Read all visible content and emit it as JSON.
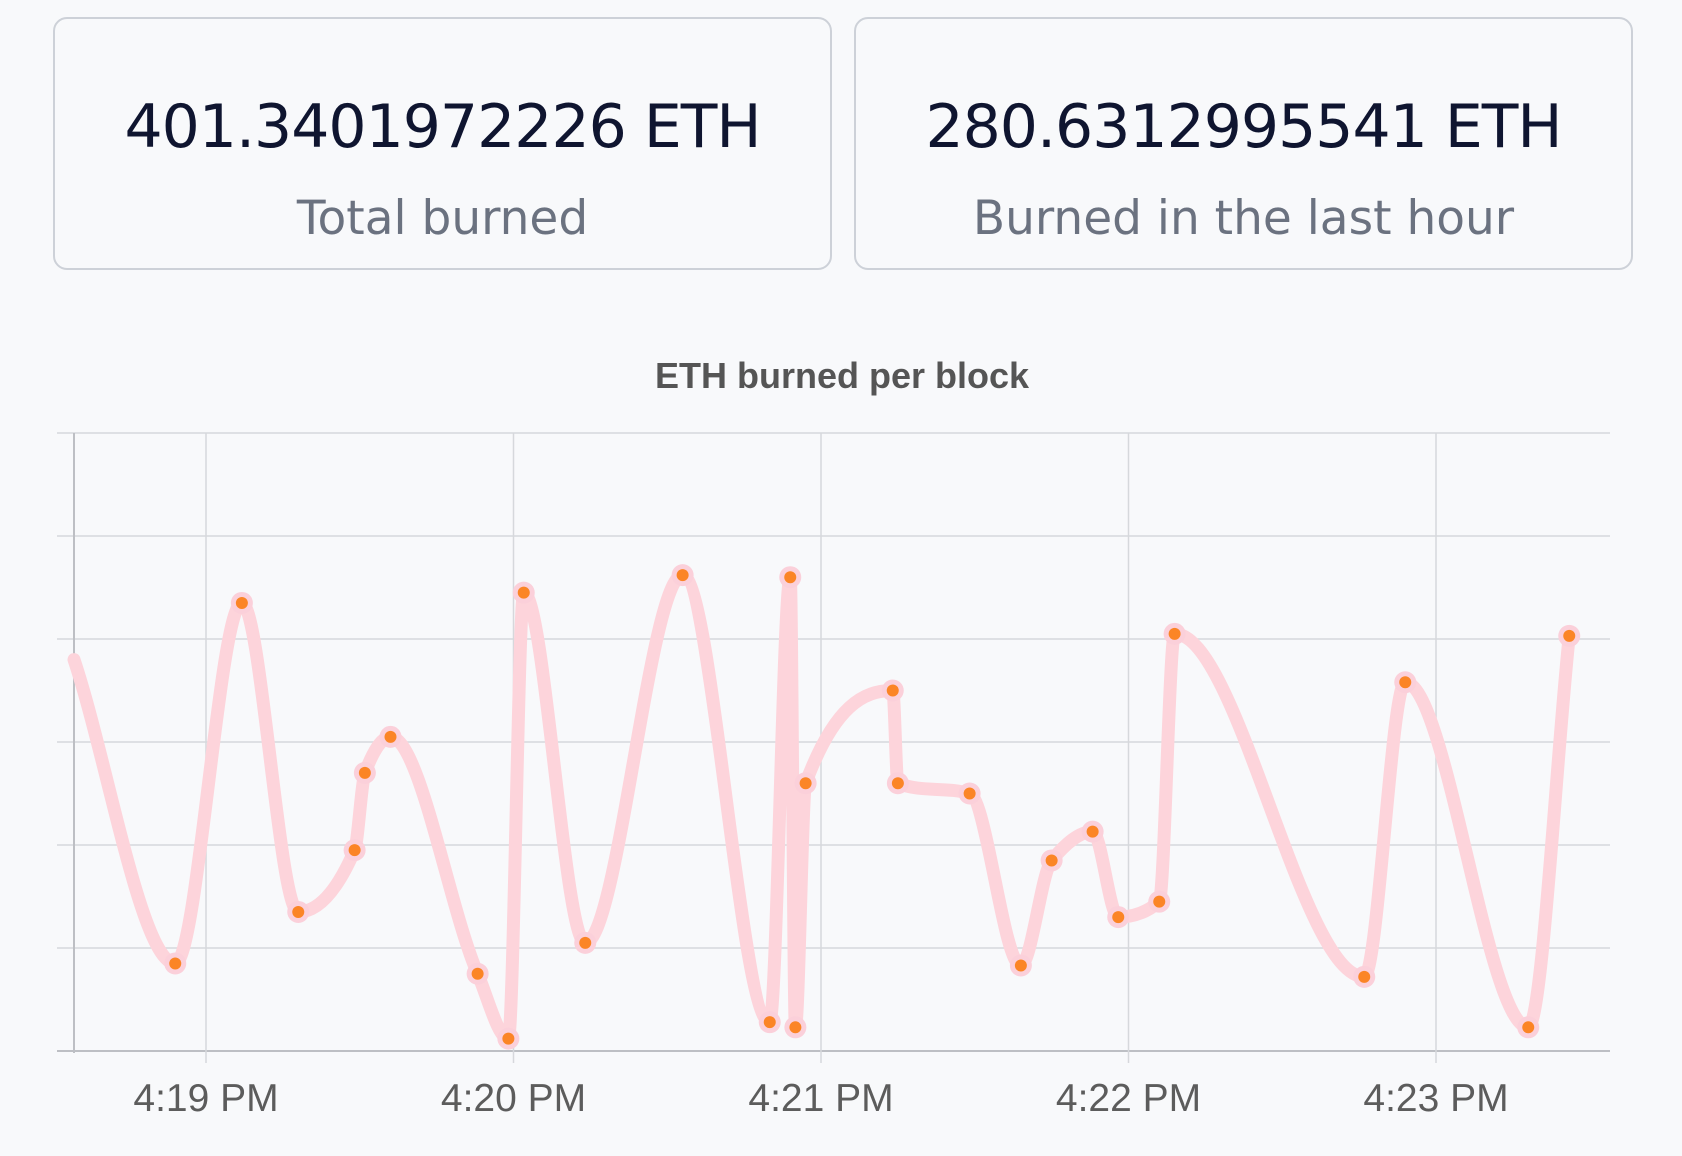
{
  "stats": {
    "total": {
      "value": "401.3401972226 ETH",
      "label": "Total burned"
    },
    "last_hour": {
      "value": "280.6312995541 ETH",
      "label": "Burned in the last hour"
    }
  },
  "colors": {
    "line": "#fdd4db",
    "point": "#fb8526",
    "point_halo": "#fbd0da",
    "grid": "#d6d8dc",
    "axis": "#bdbfc4"
  },
  "chart_data": {
    "type": "line",
    "title": "ETH burned per block",
    "xlabel": "",
    "ylabel": "",
    "x_ticks": [
      "4:19 PM",
      "4:20 PM",
      "4:21 PM",
      "4:22 PM",
      "4:23 PM"
    ],
    "y_range": [
      0,
      6
    ],
    "y_tick_labels_shown": false,
    "grid": true,
    "curve": "smooth",
    "series": [
      {
        "x": [
          "4:18:40 PM",
          "4:18:54 PM",
          "4:19:07 PM",
          "4:19:18 PM",
          "4:19:29 PM",
          "4:19:31 PM",
          "4:19:36 PM",
          "4:19:53 PM",
          "4:19:59 PM",
          "4:20:02 PM",
          "4:20:14 PM",
          "4:20:33 PM",
          "4:20:50 PM",
          "4:20:54 PM",
          "4:20:55 PM",
          "4:20:57 PM",
          "4:21:14 PM",
          "4:21:15 PM",
          "4:21:29 PM",
          "4:21:39 PM",
          "4:21:45 PM",
          "4:21:53 PM",
          "4:21:58 PM",
          "4:22:06 PM",
          "4:22:09 PM",
          "4:22:46 PM",
          "4:22:54 PM",
          "4:23:18 PM",
          "4:23:26 PM"
        ],
        "values": [
          3.8,
          0.85,
          4.35,
          1.35,
          1.95,
          2.7,
          3.05,
          0.75,
          0.12,
          4.45,
          1.05,
          4.62,
          0.28,
          4.6,
          0.23,
          2.6,
          3.5,
          2.6,
          2.5,
          0.83,
          1.85,
          2.13,
          1.3,
          1.45,
          4.05,
          0.72,
          3.58,
          0.23,
          4.03
        ]
      }
    ]
  }
}
